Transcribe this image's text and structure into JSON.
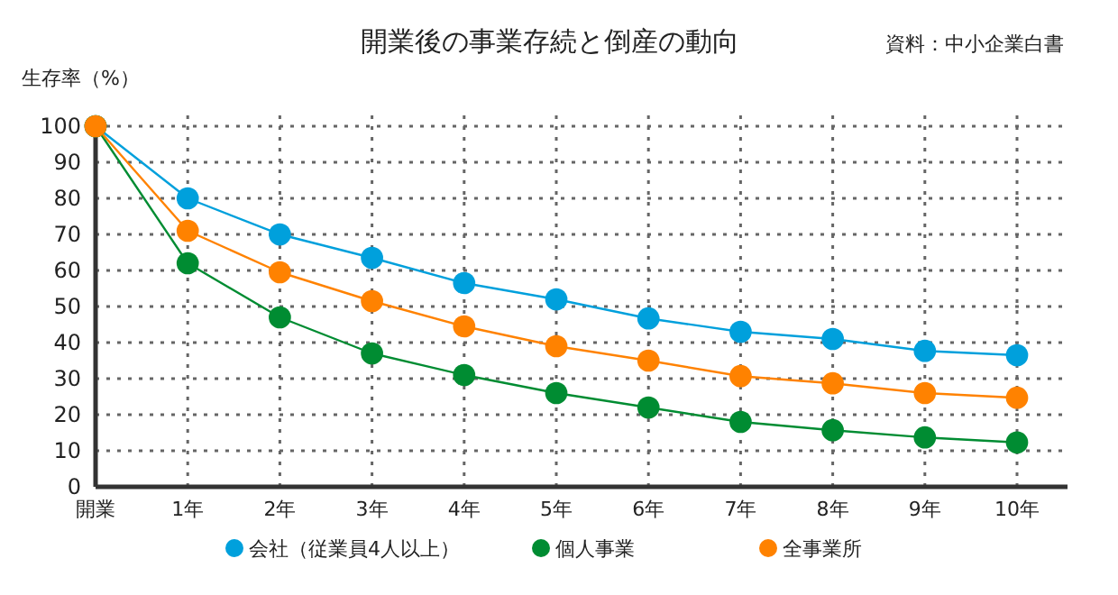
{
  "chart_data": {
    "type": "line",
    "title": "開業後の事業存続と倒産の動向",
    "ylabel": "生存率（%）",
    "annotations": [
      "資料：中小企業白書"
    ],
    "categories": [
      "開業",
      "1年",
      "2年",
      "3年",
      "4年",
      "5年",
      "6年",
      "7年",
      "8年",
      "9年",
      "10年"
    ],
    "series": [
      {
        "name": "会社（従業員4人以上）",
        "color": "#00a0dc",
        "values": [
          100,
          80,
          70,
          63.5,
          56.5,
          52,
          46.7,
          43,
          41,
          37.7,
          36.5
        ]
      },
      {
        "name": "個人事業",
        "color": "#008c32",
        "values": [
          100,
          62,
          47,
          37,
          31,
          26,
          22,
          18,
          15.7,
          13.7,
          12.3
        ]
      },
      {
        "name": "全事業所",
        "color": "#ff8200",
        "values": [
          100,
          71,
          59.5,
          51.5,
          44.5,
          39,
          35,
          30.7,
          28.7,
          26,
          24.7
        ]
      }
    ],
    "ylim": [
      0,
      100
    ],
    "yticks": [
      0,
      10,
      20,
      30,
      40,
      50,
      60,
      70,
      80,
      90,
      100
    ],
    "grid": true,
    "legend": "bottom",
    "marker": "circle",
    "line_style": "solid"
  }
}
